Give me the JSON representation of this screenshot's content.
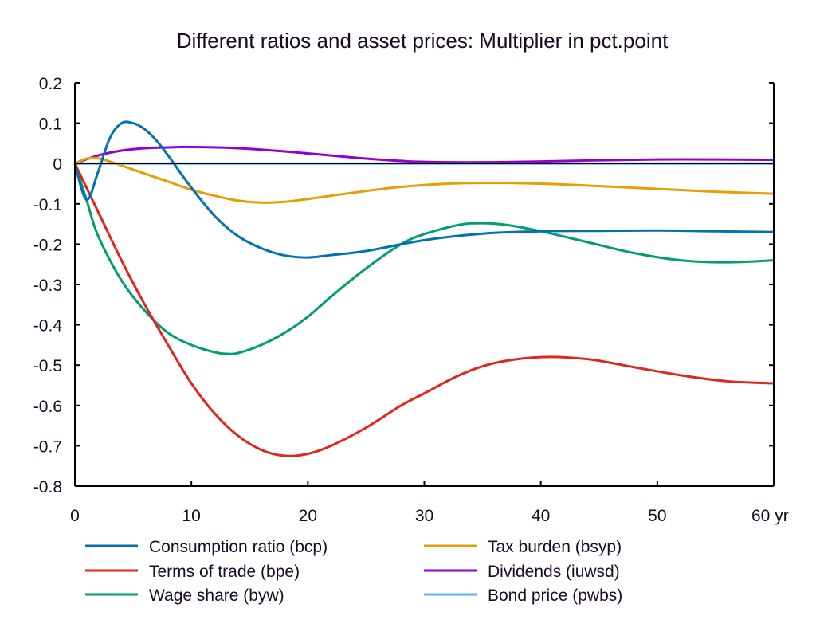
{
  "chart_data": {
    "type": "line",
    "title": "Different ratios and asset prices: Multiplier in pct.point",
    "xlabel": "",
    "ylabel": "",
    "xlim": [
      0,
      60
    ],
    "ylim": [
      -0.8,
      0.2
    ],
    "x_ticks": [
      0,
      10,
      20,
      30,
      40,
      50,
      60
    ],
    "x_tick_labels": [
      "0",
      "10",
      "20",
      "30",
      "40",
      "50",
      "60 yr"
    ],
    "y_ticks": [
      0.2,
      0.1,
      0,
      -0.1,
      -0.2,
      -0.3,
      -0.4,
      -0.5,
      -0.6,
      -0.7,
      -0.8
    ],
    "y_tick_labels": [
      "0.2",
      "0.1",
      "0",
      "-0.1",
      "-0.2",
      "-0.3",
      "-0.4",
      "-0.5",
      "-0.6",
      "-0.7",
      "-0.8"
    ],
    "grid": false,
    "legend_position": "bottom",
    "series": [
      {
        "name": "Consumption ratio (bcp)",
        "color": "#0072b2",
        "x": [
          0,
          1,
          2,
          3,
          4,
          5,
          6,
          7,
          8,
          10,
          12,
          14,
          16,
          18,
          20,
          22,
          25,
          30,
          35,
          40,
          45,
          50,
          55,
          60
        ],
        "values": [
          0,
          -0.09,
          -0.02,
          0.063,
          0.1,
          0.1,
          0.085,
          0.057,
          0.02,
          -0.06,
          -0.13,
          -0.18,
          -0.21,
          -0.228,
          -0.233,
          -0.227,
          -0.217,
          -0.19,
          -0.174,
          -0.168,
          -0.167,
          -0.166,
          -0.168,
          -0.17
        ]
      },
      {
        "name": "Terms of trade (bpe)",
        "color": "#e3241b",
        "x": [
          0,
          2,
          4,
          6,
          8,
          10,
          12,
          14,
          16,
          18,
          20,
          22,
          25,
          28,
          30,
          33,
          36,
          40,
          44,
          48,
          52,
          56,
          60
        ],
        "values": [
          0,
          -0.12,
          -0.24,
          -0.35,
          -0.45,
          -0.545,
          -0.62,
          -0.675,
          -0.71,
          -0.725,
          -0.72,
          -0.7,
          -0.655,
          -0.6,
          -0.57,
          -0.525,
          -0.495,
          -0.48,
          -0.485,
          -0.505,
          -0.525,
          -0.54,
          -0.545
        ]
      },
      {
        "name": "Wage share (byw)",
        "color": "#009e73",
        "x": [
          0,
          1,
          2,
          4,
          6,
          8,
          10,
          12,
          13,
          14,
          16,
          18,
          20,
          22,
          25,
          28,
          30,
          33,
          35,
          37,
          40,
          44,
          48,
          52,
          56,
          60
        ],
        "values": [
          0,
          -0.09,
          -0.18,
          -0.29,
          -0.365,
          -0.42,
          -0.45,
          -0.468,
          -0.472,
          -0.47,
          -0.45,
          -0.42,
          -0.38,
          -0.33,
          -0.26,
          -0.2,
          -0.175,
          -0.152,
          -0.148,
          -0.152,
          -0.168,
          -0.195,
          -0.222,
          -0.24,
          -0.245,
          -0.24
        ]
      },
      {
        "name": "Tax burden (bsyp)",
        "color": "#e69f00",
        "x": [
          0,
          1,
          2,
          3,
          4,
          6,
          8,
          10,
          12,
          14,
          16,
          18,
          20,
          24,
          28,
          32,
          36,
          40,
          45,
          50,
          55,
          60
        ],
        "values": [
          0,
          0.012,
          0.013,
          0.005,
          -0.005,
          -0.025,
          -0.045,
          -0.065,
          -0.08,
          -0.092,
          -0.097,
          -0.095,
          -0.088,
          -0.072,
          -0.058,
          -0.05,
          -0.048,
          -0.05,
          -0.056,
          -0.063,
          -0.07,
          -0.075
        ]
      },
      {
        "name": "Dividends (iuwsd)",
        "color": "#9400d3",
        "x": [
          0,
          2,
          4,
          6,
          8,
          10,
          14,
          18,
          22,
          26,
          30,
          35,
          40,
          45,
          50,
          55,
          60
        ],
        "values": [
          0,
          0.02,
          0.032,
          0.038,
          0.04,
          0.041,
          0.038,
          0.03,
          0.02,
          0.01,
          0.004,
          0.003,
          0.005,
          0.008,
          0.01,
          0.01,
          0.009
        ]
      },
      {
        "name": "Bond price (pwbs)",
        "color": "#56b4e9",
        "x": [
          0,
          60
        ],
        "values": [
          0,
          0
        ]
      }
    ]
  }
}
